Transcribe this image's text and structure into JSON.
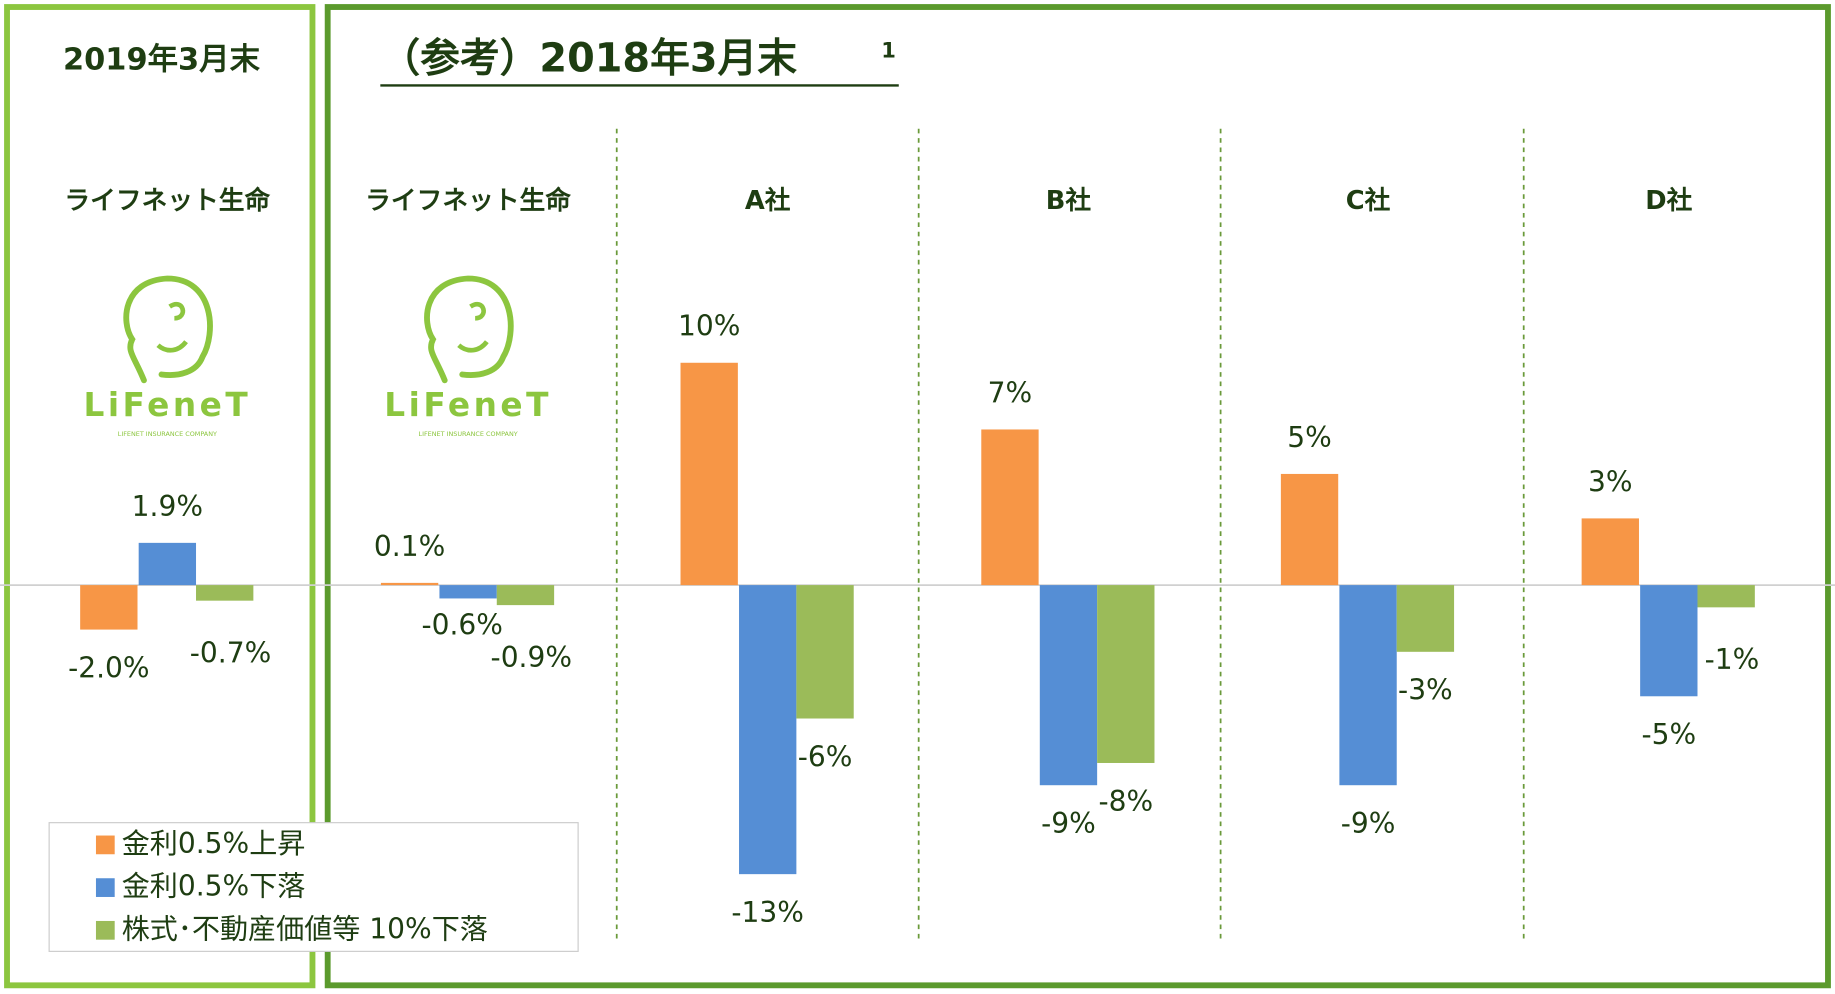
{
  "chart_data": {
    "type": "bar",
    "panel_titles": [
      "2019年3月末",
      "（参考）2018年3月末"
    ],
    "title_note": "1",
    "logo": {
      "name": "LiFeneT",
      "tagline": "LIFENET INSURANCE COMPANY"
    },
    "categories": [
      "ライフネット生命",
      "ライフネット生命",
      "A社",
      "B社",
      "C社",
      "D社"
    ],
    "series": [
      {
        "name": "金利0.5%上昇",
        "color": "#f79646",
        "values": [
          -2.0,
          0.1,
          10,
          7,
          5,
          3
        ],
        "value_labels": [
          "-2.0%",
          "0.1%",
          "10%",
          "7%",
          "5%",
          "3%"
        ]
      },
      {
        "name": "金利0.5%下落",
        "color": "#558ed5",
        "values": [
          1.9,
          -0.6,
          -13,
          -9,
          -9,
          -5
        ],
        "value_labels": [
          "1.9%",
          "-0.6%",
          "-13%",
          "-9%",
          "-9%",
          "-5%"
        ]
      },
      {
        "name": "株式･不動産価値等 10%下落",
        "color": "#9bbb59",
        "values": [
          -0.7,
          -0.9,
          -6,
          -8,
          -3,
          -1
        ],
        "value_labels": [
          "-0.7%",
          "-0.9%",
          "-6%",
          "-8%",
          "-3%",
          "-1%"
        ]
      }
    ],
    "ylim": [
      -16,
      14
    ],
    "legend": "lower left"
  }
}
